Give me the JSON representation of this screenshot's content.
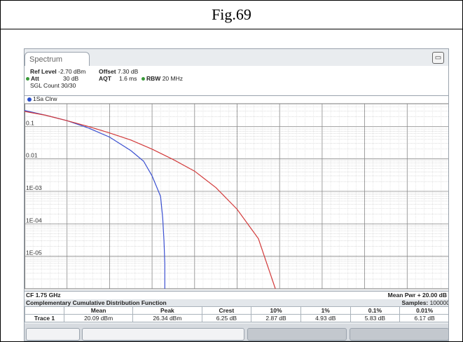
{
  "figure": {
    "title": "Fig.69"
  },
  "tab": {
    "label": "Spectrum"
  },
  "settings": {
    "ref_level_label": "Ref Level",
    "ref_level_value": "-2.70 dBm",
    "offset_label": "Offset",
    "offset_value": "7.30 dB",
    "att_label": "Att",
    "att_value": "30 dB",
    "aqt_label": "AQT",
    "aqt_value": "1.6 ms",
    "rbw_label": "RBW",
    "rbw_value": "20 MHz",
    "sgl_count": "SGL Count 30/30"
  },
  "trace_bar": {
    "label": "1Sa Clrw"
  },
  "footer": {
    "cf": "CF 1.75 GHz",
    "mean_pwr": "Mean Pwr + 20.00 dB"
  },
  "ccdf": {
    "title": "Complementary Cumulative Distribution Function",
    "samples_label": "Samples:",
    "samples_value": "100000",
    "headers": [
      "",
      "Mean",
      "Peak",
      "Crest",
      "10%",
      "1%",
      "0.1%",
      "0.01%"
    ],
    "row": [
      "Trace 1",
      "20.09 dBm",
      "26.34 dBm",
      "6.25 dB",
      "2.87 dB",
      "4.93 dB",
      "5.83 dB",
      "6.17 dB"
    ]
  },
  "chart_data": {
    "type": "line",
    "yscale": "log",
    "y_tick_labels": [
      "0.1",
      "0.01",
      "1E-03",
      "1E-04",
      "1E-05"
    ],
    "y_ticks": [
      0.1,
      0.01,
      0.001,
      0.0001,
      1e-05
    ],
    "ylim": [
      1e-06,
      0.5
    ],
    "x_divisions": 10,
    "xlim": [
      0,
      10
    ],
    "grid": true,
    "colors": {
      "measured": "#3a4fd0",
      "reference": "#d23a3a"
    },
    "series": [
      {
        "x": [
          0,
          0.5,
          1,
          1.5,
          2,
          2.5,
          2.8,
          3,
          3.2,
          3.25,
          3.28,
          3.3,
          3.3
        ],
        "y": [
          0.31,
          0.22,
          0.15,
          0.09,
          0.047,
          0.018,
          0.0085,
          0.003,
          0.0007,
          0.00015,
          3e-05,
          6e-06,
          1e-06
        ]
      },
      {
        "x": [
          0,
          0.5,
          1,
          1.5,
          2,
          2.5,
          3,
          3.5,
          4,
          4.5,
          5,
          5.5,
          5.9
        ],
        "y": [
          0.29,
          0.22,
          0.15,
          0.1,
          0.063,
          0.038,
          0.02,
          0.0095,
          0.0042,
          0.0013,
          0.00028,
          3.5e-05,
          1e-06
        ]
      }
    ]
  }
}
